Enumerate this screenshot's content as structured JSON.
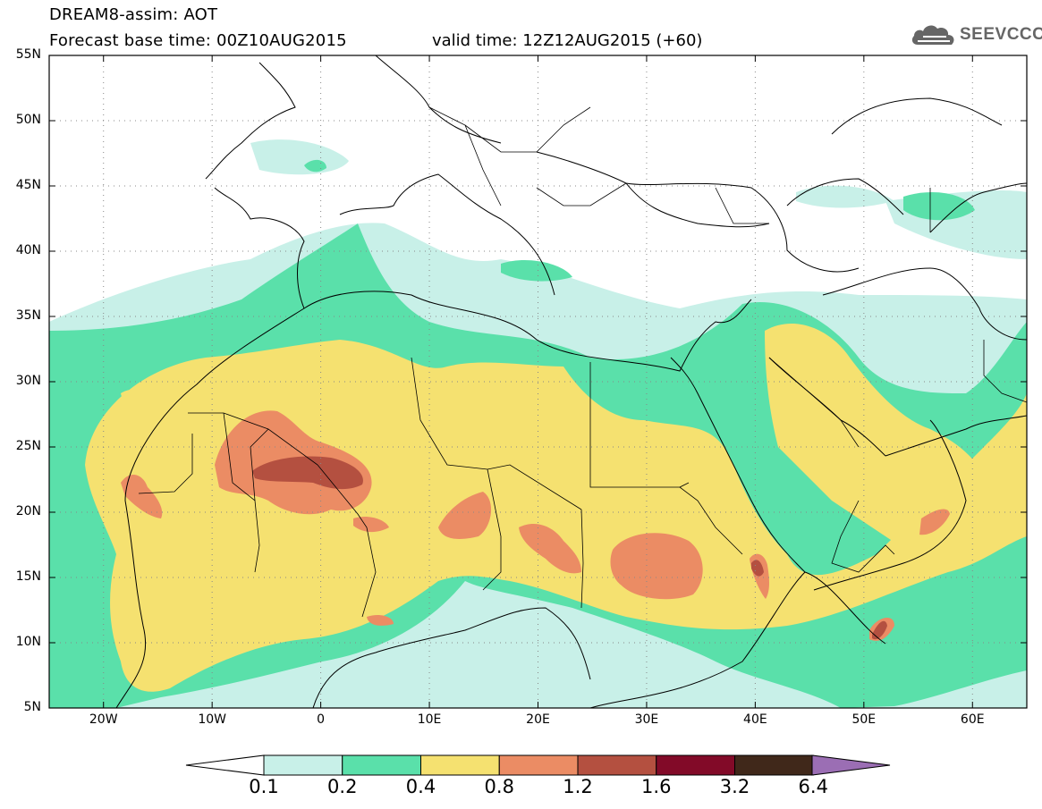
{
  "header": {
    "line1": "DREAM8-assim: AOT",
    "line2": "Forecast base time: 00Z10AUG2015",
    "valid": "valid time: 12Z12AUG2015 (+60)",
    "logo_text": "SEEVCCC"
  },
  "map": {
    "lon_range": [
      -25,
      65
    ],
    "lat_range": [
      5,
      55
    ],
    "lat_labels": [
      "55N",
      "50N",
      "45N",
      "40N",
      "35N",
      "30N",
      "25N",
      "20N",
      "15N",
      "10N",
      "5N"
    ],
    "lon_labels": [
      "20W",
      "10W",
      "0",
      "10E",
      "20E",
      "30E",
      "40E",
      "50E",
      "60E"
    ]
  },
  "colorbar": {
    "labels": [
      "0.1",
      "0.2",
      "0.4",
      "0.8",
      "1.2",
      "1.6",
      "3.2",
      "6.4"
    ],
    "colors": [
      "#ffffff",
      "#c8f0e8",
      "#5ae0aa",
      "#f5e170",
      "#eb8c64",
      "#b45040",
      "#820a28",
      "#40281a",
      "#9b6eb4"
    ]
  },
  "colors": {
    "aot_0_1_0_2": "#c8f0e8",
    "aot_0_2_0_4": "#5ae0aa",
    "aot_0_4_0_8": "#f5e170",
    "aot_0_8_1_2": "#eb8c64",
    "aot_1_2_1_6": "#b45040",
    "logo": "#666666"
  }
}
